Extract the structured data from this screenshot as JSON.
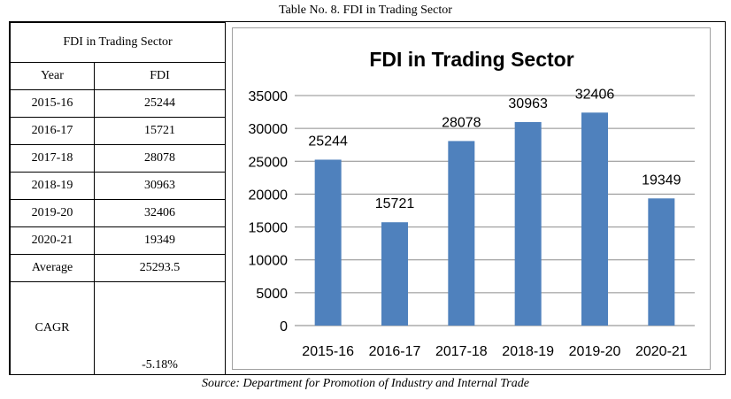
{
  "caption": "Table No. 8. FDI in Trading Sector",
  "source": "Source: Department for Promotion of Industry and Internal Trade",
  "table": {
    "title": "FDI in Trading Sector",
    "headers": [
      "Year",
      "FDI"
    ],
    "rows": [
      {
        "year": "2015-16",
        "fdi": "25244"
      },
      {
        "year": "2016-17",
        "fdi": "15721"
      },
      {
        "year": "2017-18",
        "fdi": "28078"
      },
      {
        "year": "2018-19",
        "fdi": "30963"
      },
      {
        "year": "2019-20",
        "fdi": "32406"
      },
      {
        "year": "2020-21",
        "fdi": "19349"
      }
    ],
    "average_label": "Average",
    "average_value": "25293.5",
    "cagr_label": "CAGR",
    "cagr_value": "-5.18%"
  },
  "chart_data": {
    "type": "bar",
    "title": "FDI in Trading Sector",
    "categories": [
      "2015-16",
      "2016-17",
      "2017-18",
      "2018-19",
      "2019-20",
      "2020-21"
    ],
    "values": [
      25244,
      15721,
      28078,
      30963,
      32406,
      19349
    ],
    "xlabel": "",
    "ylabel": "",
    "ylim": [
      0,
      35000
    ],
    "yticks": [
      "0",
      "5000",
      "10000",
      "15000",
      "20000",
      "25000",
      "30000",
      "35000"
    ],
    "grid": true,
    "legend": "none",
    "bar_color": "#4f81bd"
  }
}
